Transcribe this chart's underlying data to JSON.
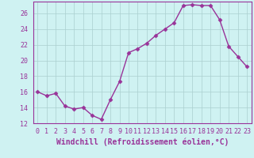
{
  "x": [
    0,
    1,
    2,
    3,
    4,
    5,
    6,
    7,
    8,
    9,
    10,
    11,
    12,
    13,
    14,
    15,
    16,
    17,
    18,
    19,
    20,
    21,
    22,
    23
  ],
  "y": [
    16.0,
    15.5,
    15.8,
    14.2,
    13.8,
    14.0,
    13.0,
    12.5,
    15.0,
    17.3,
    21.0,
    21.5,
    22.2,
    23.2,
    24.0,
    24.8,
    27.0,
    27.1,
    27.0,
    27.0,
    25.2,
    21.8,
    20.5,
    19.2
  ],
  "line_color": "#993399",
  "marker": "D",
  "marker_size": 2.5,
  "bg_color": "#cff2f2",
  "grid_color": "#aacfcf",
  "xlabel": "Windchill (Refroidissement éolien,°C)",
  "ylim": [
    12,
    27.5
  ],
  "xlim": [
    -0.5,
    23.5
  ],
  "yticks": [
    12,
    14,
    16,
    18,
    20,
    22,
    24,
    26
  ],
  "xticks": [
    0,
    1,
    2,
    3,
    4,
    5,
    6,
    7,
    8,
    9,
    10,
    11,
    12,
    13,
    14,
    15,
    16,
    17,
    18,
    19,
    20,
    21,
    22,
    23
  ],
  "xlabel_fontsize": 7.0,
  "tick_fontsize": 6.0,
  "line_width": 1.0
}
